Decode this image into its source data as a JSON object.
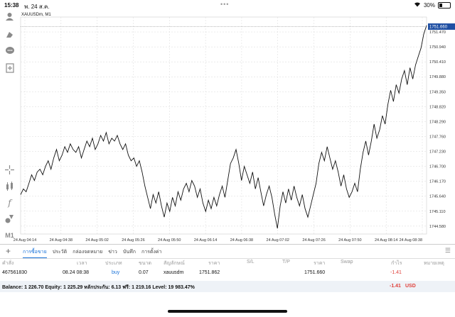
{
  "status": {
    "time": "15:38",
    "date": "พ. 24 ส.ค.",
    "battery": "30%",
    "battery_level": 0.3
  },
  "chart": {
    "symbol_label": "XAUUSDm, M1",
    "current_price": "1751.660",
    "y_ticks": [
      "1751.470",
      "1750.940",
      "1750.410",
      "1749.880",
      "1749.350",
      "1748.820",
      "1748.290",
      "1747.760",
      "1747.230",
      "1746.700",
      "1746.170",
      "1745.640",
      "1745.110",
      "1744.580"
    ],
    "x_ticks": [
      "24 Aug 04:14",
      "24 Aug 04:38",
      "24 Aug 05:02",
      "24 Aug 05:26",
      "24 Aug 05:50",
      "24 Aug 06:14",
      "24 Aug 06:38",
      "24 Aug 07:02",
      "24 Aug 07:26",
      "24 Aug 07:50",
      "24 Aug 08:14",
      "24 Aug 08:38"
    ]
  },
  "chart_data": {
    "type": "line",
    "title": "XAUUSDm, M1",
    "ylim": [
      1744.3,
      1752.0
    ],
    "series": [
      {
        "values": [
          1745.7,
          1745.9,
          1745.8,
          1746.1,
          1746.4,
          1746.2,
          1746.5,
          1746.6,
          1746.4,
          1746.7,
          1746.9,
          1746.6,
          1747.0,
          1747.3,
          1746.9,
          1747.1,
          1747.4,
          1747.2,
          1747.5,
          1747.3,
          1747.2,
          1747.4,
          1747.0,
          1747.3,
          1747.6,
          1747.4,
          1747.7,
          1747.3,
          1747.5,
          1747.8,
          1747.6,
          1747.9,
          1747.5,
          1747.7,
          1747.6,
          1747.8,
          1747.5,
          1747.3,
          1747.5,
          1747.1,
          1746.9,
          1747.0,
          1746.7,
          1746.9,
          1746.5,
          1746.0,
          1745.6,
          1745.2,
          1745.7,
          1745.4,
          1745.8,
          1745.3,
          1744.9,
          1745.4,
          1745.1,
          1745.6,
          1745.3,
          1745.8,
          1745.5,
          1745.9,
          1746.1,
          1745.8,
          1746.2,
          1746.0,
          1745.6,
          1745.9,
          1745.4,
          1745.1,
          1745.5,
          1745.2,
          1745.6,
          1745.3,
          1745.7,
          1746.0,
          1745.6,
          1746.2,
          1746.8,
          1747.0,
          1747.3,
          1746.8,
          1746.2,
          1746.7,
          1746.4,
          1746.1,
          1746.5,
          1745.9,
          1746.3,
          1745.8,
          1745.3,
          1745.7,
          1746.0,
          1745.6,
          1745.0,
          1744.5,
          1745.3,
          1745.8,
          1745.4,
          1745.9,
          1745.5,
          1746.0,
          1745.6,
          1745.3,
          1745.7,
          1745.2,
          1744.9,
          1745.3,
          1745.7,
          1746.1,
          1746.8,
          1747.2,
          1746.9,
          1747.4,
          1747.0,
          1746.6,
          1746.9,
          1746.5,
          1746.0,
          1746.4,
          1745.9,
          1745.6,
          1745.8,
          1746.1,
          1745.8,
          1746.6,
          1747.2,
          1747.6,
          1747.1,
          1747.6,
          1748.2,
          1747.7,
          1748.0,
          1748.5,
          1748.2,
          1748.9,
          1749.4,
          1749.0,
          1749.6,
          1749.3,
          1749.8,
          1750.1,
          1749.6,
          1750.2,
          1749.8,
          1750.3,
          1750.6,
          1750.9,
          1751.4,
          1751.7
        ]
      }
    ]
  },
  "sidebar": {
    "icons": [
      "person-icon",
      "shape-icon",
      "chat-icon",
      "add-doc-icon",
      "crosshair-icon",
      "indicator-icon",
      "function-icon",
      "objects-icon",
      "timeframe-icon"
    ],
    "timeframe": "M1"
  },
  "bottom": {
    "tabs": [
      "การซื้อขาย",
      "ประวัติ",
      "กล่องจดหมาย",
      "ข่าว",
      "บันทึก",
      "การตั้งค่า"
    ]
  },
  "table": {
    "headers": [
      "คำสั่ง",
      "เวลา",
      "ประเภท",
      "ขนาด",
      "สัญลักษณ์",
      "ราคา",
      "S/L",
      "T/P",
      "ราคา",
      "Swap",
      "กำไร",
      "หมายเหตุ"
    ],
    "row": {
      "order": "467561830",
      "time": "08.24 08:38",
      "type": "buy",
      "size": "0.07",
      "symbol": "xauusdm",
      "price": "1751.862",
      "sl": "",
      "tp": "",
      "cur_price": "1751.660",
      "swap": "",
      "profit": "-1.41",
      "comment": ""
    }
  },
  "balance": {
    "text": "Balance: 1 226.70 Equity: 1 225.29 หลักประกัน: 6.13 ฟรี: 1 219.16 Level: 19 983.47%",
    "profit": "-1.41",
    "currency": "USD"
  },
  "colors": {
    "accent": "#1a73d9",
    "loss": "#e0403a",
    "price_tag": "#1f4fa3"
  }
}
